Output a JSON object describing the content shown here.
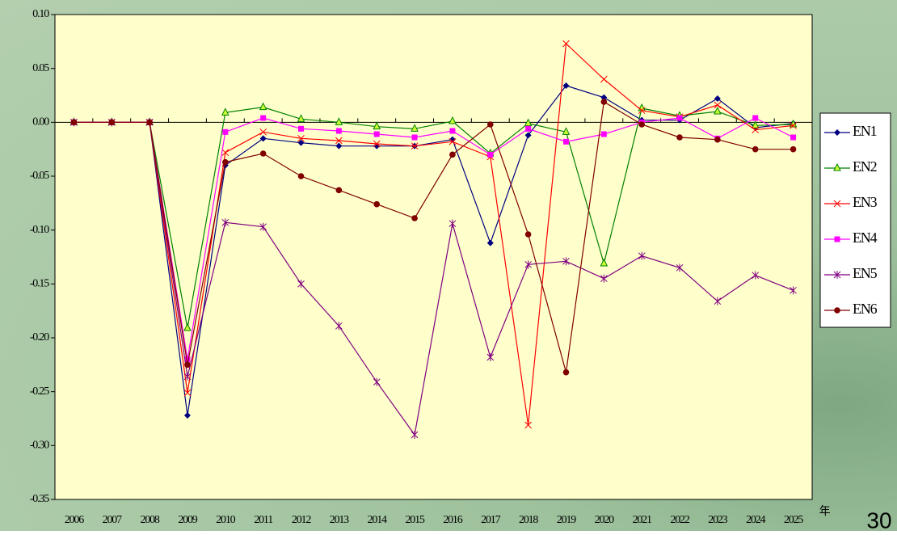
{
  "chart_data": {
    "type": "line",
    "x_label": "年",
    "categories": [
      "2006",
      "2007",
      "2008",
      "2009",
      "2010",
      "2011",
      "2012",
      "2013",
      "2014",
      "2015",
      "2016",
      "2017",
      "2018",
      "2019",
      "2020",
      "2021",
      "2022",
      "2023",
      "2024",
      "2025"
    ],
    "ylim": [
      -0.35,
      0.1
    ],
    "yticks": [
      {
        "value": 0.1,
        "label": "0.10"
      },
      0.05,
      {
        "value": 0,
        "label": "0.00"
      },
      -0.05,
      {
        "value": -0.1,
        "label": "-0.10"
      },
      -0.15,
      {
        "value": -0.2,
        "label": "-0.20"
      },
      -0.25,
      {
        "value": -0.3,
        "label": "-0.30"
      },
      -0.35
    ],
    "legend_position": "right",
    "series": [
      {
        "name": "EN1",
        "color": "#000080",
        "marker": "diamond",
        "values": [
          0,
          0,
          0,
          -0.272,
          -0.04,
          -0.015,
          -0.019,
          -0.022,
          -0.022,
          -0.022,
          -0.016,
          -0.112,
          -0.012,
          0.034,
          0.023,
          0.002,
          0.002,
          0.022,
          -0.005,
          -0.001
        ]
      },
      {
        "name": "EN2",
        "color": "#008000",
        "marker": "triangle",
        "values": [
          0,
          0,
          0,
          -0.191,
          0.009,
          0.014,
          0.003,
          0.0,
          -0.004,
          -0.006,
          0.001,
          -0.029,
          -0.001,
          -0.009,
          -0.131,
          0.013,
          0.006,
          0.01,
          -0.003,
          -0.002
        ]
      },
      {
        "name": "EN3",
        "color": "#ff0000",
        "marker": "x",
        "values": [
          0,
          0,
          0,
          -0.251,
          -0.028,
          -0.009,
          -0.015,
          -0.017,
          -0.02,
          -0.022,
          -0.018,
          -0.032,
          -0.281,
          0.073,
          0.04,
          0.011,
          0.005,
          0.016,
          -0.007,
          -0.003
        ]
      },
      {
        "name": "EN4",
        "color": "#ff00ff",
        "marker": "square",
        "values": [
          0,
          0,
          0,
          -0.22,
          -0.009,
          0.004,
          -0.006,
          -0.008,
          -0.011,
          -0.014,
          -0.008,
          -0.03,
          -0.006,
          -0.018,
          -0.011,
          0.0,
          0.004,
          -0.015,
          0.004,
          -0.014
        ]
      },
      {
        "name": "EN5",
        "color": "#800080",
        "marker": "asterisk",
        "values": [
          0,
          0,
          0,
          -0.236,
          -0.093,
          -0.097,
          -0.15,
          -0.189,
          -0.241,
          -0.29,
          -0.094,
          -0.218,
          -0.132,
          -0.129,
          -0.145,
          -0.124,
          -0.135,
          -0.166,
          -0.142,
          -0.156
        ]
      },
      {
        "name": "EN6",
        "color": "#800000",
        "marker": "circle",
        "values": [
          0,
          0,
          0,
          -0.225,
          -0.037,
          -0.029,
          -0.05,
          -0.063,
          -0.076,
          -0.089,
          -0.03,
          -0.002,
          -0.104,
          -0.232,
          0.019,
          -0.002,
          -0.014,
          -0.016,
          -0.025,
          -0.025
        ]
      }
    ]
  },
  "page_number": "30"
}
